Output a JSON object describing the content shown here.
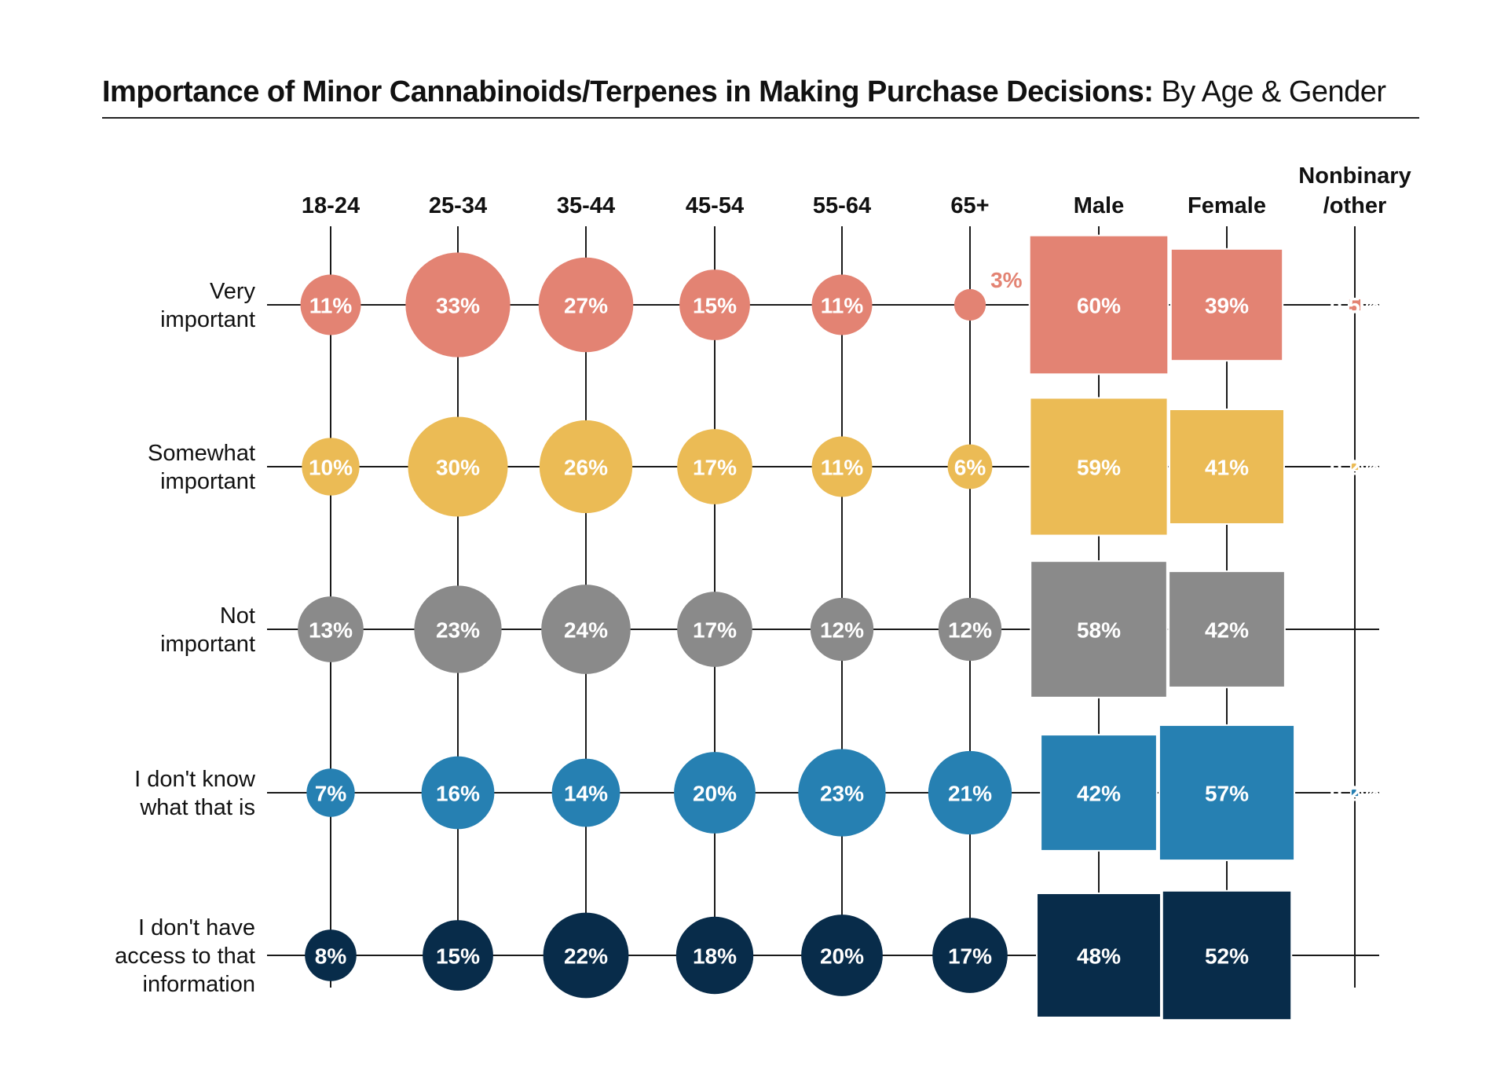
{
  "title": {
    "bold": "Importance of Minor Cannabinoids/Terpenes in Making Purchase Decisions:",
    "regular": " By Age & Gender"
  },
  "chart_data": {
    "type": "bubble-matrix",
    "title": "Importance of Minor Cannabinoids/Terpenes in Making Purchase Decisions: By Age & Gender",
    "columns": [
      {
        "label": "18-24",
        "group": "age",
        "mark": "circle"
      },
      {
        "label": "25-34",
        "group": "age",
        "mark": "circle"
      },
      {
        "label": "35-44",
        "group": "age",
        "mark": "circle"
      },
      {
        "label": "45-54",
        "group": "age",
        "mark": "circle"
      },
      {
        "label": "55-64",
        "group": "age",
        "mark": "circle"
      },
      {
        "label": "65+",
        "group": "age",
        "mark": "circle"
      },
      {
        "label": "Male",
        "group": "gender",
        "mark": "square"
      },
      {
        "label": "Female",
        "group": "gender",
        "mark": "square"
      },
      {
        "label": "Nonbinary\n/other",
        "label_lines": [
          "Nonbinary",
          "/other"
        ],
        "group": "gender",
        "mark": "square"
      }
    ],
    "rows": [
      {
        "label_lines": [
          "Very",
          "important"
        ],
        "color": "#E38373",
        "values": [
          11,
          33,
          27,
          15,
          11,
          3,
          60,
          39,
          0.5
        ],
        "labels": [
          "11%",
          "33%",
          "27%",
          "15%",
          "11%",
          "3%",
          "60%",
          "39%",
          "0.5%"
        ]
      },
      {
        "label_lines": [
          "Somewhat",
          "important"
        ],
        "color": "#EBBB55",
        "values": [
          10,
          30,
          26,
          17,
          11,
          6,
          59,
          41,
          0.2
        ],
        "labels": [
          "10%",
          "30%",
          "26%",
          "17%",
          "11%",
          "6%",
          "59%",
          "41%",
          "0.2%"
        ]
      },
      {
        "label_lines": [
          "Not",
          "important"
        ],
        "color": "#8A8A8A",
        "values": [
          13,
          23,
          24,
          17,
          12,
          12,
          58,
          42,
          null
        ],
        "labels": [
          "13%",
          "23%",
          "24%",
          "17%",
          "12%",
          "12%",
          "58%",
          "42%",
          null
        ]
      },
      {
        "label_lines": [
          "I don't know",
          "what that is"
        ],
        "color": "#2680B2",
        "values": [
          7,
          16,
          14,
          20,
          23,
          21,
          42,
          57,
          0.2
        ],
        "labels": [
          "7%",
          "16%",
          "14%",
          "20%",
          "23%",
          "21%",
          "42%",
          "57%",
          "0.2%"
        ]
      },
      {
        "label_lines": [
          "I don't have",
          "access to that",
          "information"
        ],
        "color": "#082C4A",
        "values": [
          8,
          15,
          22,
          18,
          20,
          17,
          48,
          52,
          null
        ],
        "labels": [
          "8%",
          "15%",
          "22%",
          "18%",
          "20%",
          "17%",
          "48%",
          "52%",
          null
        ]
      }
    ],
    "units": "%",
    "size_encoding": "area proportional to value"
  }
}
